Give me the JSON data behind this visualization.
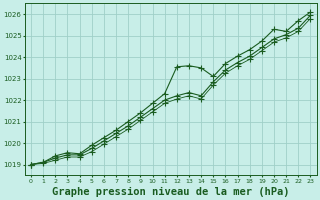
{
  "background_color": "#c8eee8",
  "grid_color": "#a0d0c8",
  "line_color": "#1a5c20",
  "marker_color": "#1a5c20",
  "xlabel": "Graphe pression niveau de la mer (hPa)",
  "xlabel_fontsize": 7.5,
  "xlim_min": -0.5,
  "xlim_max": 23.5,
  "ylim": [
    1018.5,
    1026.5
  ],
  "yticks": [
    1019,
    1020,
    1021,
    1022,
    1023,
    1024,
    1025,
    1026
  ],
  "xticks": [
    0,
    1,
    2,
    3,
    4,
    5,
    6,
    7,
    8,
    9,
    10,
    11,
    12,
    13,
    14,
    15,
    16,
    17,
    18,
    19,
    20,
    21,
    22,
    23
  ],
  "series": [
    [
      1019.0,
      1019.1,
      1019.4,
      1019.55,
      1019.5,
      1019.9,
      1020.25,
      1020.6,
      1021.0,
      1021.4,
      1021.85,
      1022.3,
      1023.55,
      1023.6,
      1023.5,
      1023.1,
      1023.7,
      1024.05,
      1024.35,
      1024.75,
      1025.3,
      1025.2,
      1025.7,
      1026.1
    ],
    [
      1019.0,
      1019.1,
      1019.3,
      1019.45,
      1019.45,
      1019.75,
      1020.1,
      1020.45,
      1020.8,
      1021.2,
      1021.6,
      1022.0,
      1022.2,
      1022.35,
      1022.2,
      1022.85,
      1023.4,
      1023.75,
      1024.05,
      1024.45,
      1024.85,
      1025.05,
      1025.35,
      1025.95
    ],
    [
      1019.0,
      1019.05,
      1019.2,
      1019.35,
      1019.35,
      1019.6,
      1019.95,
      1020.3,
      1020.65,
      1021.05,
      1021.45,
      1021.85,
      1022.05,
      1022.2,
      1022.05,
      1022.7,
      1023.25,
      1023.6,
      1023.9,
      1024.3,
      1024.7,
      1024.9,
      1025.2,
      1025.8
    ]
  ]
}
